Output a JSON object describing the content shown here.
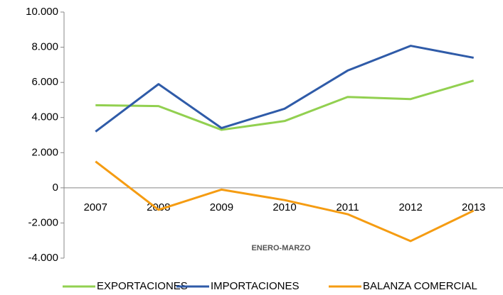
{
  "chart_data": {
    "type": "line",
    "x_label": "ENERO-MARZO",
    "categories": [
      "2007",
      "2008",
      "2009",
      "2010",
      "2011",
      "2012",
      "2013"
    ],
    "series": [
      {
        "name": "EXPORTACIONES",
        "color": "#92d050",
        "values": [
          4700,
          4650,
          3300,
          3800,
          5170,
          5050,
          6100
        ]
      },
      {
        "name": "IMPORTACIONES",
        "color": "#2f5ba8",
        "values": [
          3200,
          5900,
          3400,
          4500,
          6670,
          8080,
          7400
        ]
      },
      {
        "name": "BALANZA COMERCIAL",
        "color": "#f59c12",
        "values": [
          1500,
          -1250,
          -100,
          -700,
          -1500,
          -3030,
          -1300
        ]
      }
    ],
    "ylim": [
      -4000,
      10000
    ],
    "yticks": [
      {
        "value": -4000,
        "label": "-4.000"
      },
      {
        "value": -2000,
        "label": "-2.000"
      },
      0,
      {
        "value": 2000,
        "label": "2.000"
      },
      {
        "value": 4000,
        "label": "4.000"
      },
      {
        "value": 6000,
        "label": "6.000"
      },
      {
        "value": 8000,
        "label": "8.000"
      },
      {
        "value": 10000,
        "label": "10.000"
      }
    ],
    "grid": false,
    "legend": "bottom"
  }
}
